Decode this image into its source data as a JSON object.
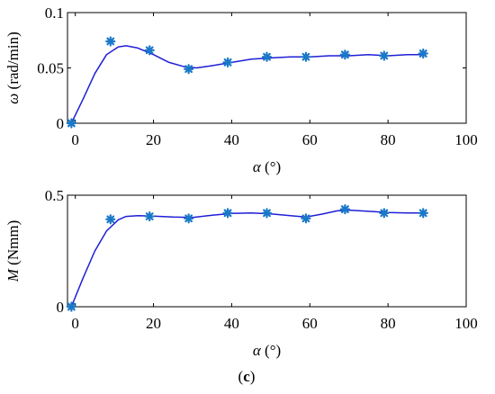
{
  "caption": {
    "prefix": "(",
    "letter": "c",
    "suffix": ")"
  },
  "colors": {
    "curve": "#1f1fd6",
    "marker": "#1a78c8"
  },
  "chart_data": [
    {
      "type": "line",
      "xlabel": {
        "symbol": "α",
        "unit": " (°)"
      },
      "ylabel": {
        "symbol": "ω",
        "unit": "  (rad/min)"
      },
      "xlim": [
        -2,
        100
      ],
      "ylim": [
        0,
        0.1
      ],
      "xticks": [
        0,
        20,
        40,
        60,
        80,
        100
      ],
      "xtick_labels": [
        "0",
        "20",
        "40",
        "60",
        "80",
        "100"
      ],
      "yticks": [
        0,
        0.05,
        0.1
      ],
      "ytick_labels": [
        "0",
        "0.05",
        "0.1"
      ],
      "grid": false,
      "series": [
        {
          "style": "markers",
          "marker": "asterisk",
          "x": [
            -1,
            9,
            19,
            29,
            39,
            49,
            59,
            69,
            79,
            89
          ],
          "y": [
            0.0,
            0.074,
            0.066,
            0.049,
            0.055,
            0.06,
            0.06,
            0.062,
            0.061,
            0.063
          ]
        },
        {
          "style": "line",
          "x": [
            -1,
            2,
            5,
            8,
            11,
            13,
            16,
            20,
            24,
            28,
            31,
            35,
            40,
            45,
            50,
            55,
            60,
            65,
            70,
            75,
            80,
            85,
            89
          ],
          "y": [
            0.0,
            0.022,
            0.045,
            0.062,
            0.069,
            0.07,
            0.068,
            0.062,
            0.055,
            0.051,
            0.05,
            0.052,
            0.055,
            0.058,
            0.059,
            0.06,
            0.06,
            0.061,
            0.061,
            0.062,
            0.061,
            0.062,
            0.062
          ]
        }
      ]
    },
    {
      "type": "line",
      "xlabel": {
        "symbol": "α",
        "unit": " (°)"
      },
      "ylabel": {
        "symbol": "M",
        "unit": " (Nmm)"
      },
      "xlim": [
        -2,
        100
      ],
      "ylim": [
        0,
        0.5
      ],
      "xticks": [
        0,
        20,
        40,
        60,
        80,
        100
      ],
      "xtick_labels": [
        "0",
        "20",
        "40",
        "60",
        "80",
        "100"
      ],
      "yticks": [
        0,
        0.5
      ],
      "ytick_labels": [
        "0",
        "0.5"
      ],
      "grid": false,
      "series": [
        {
          "style": "markers",
          "marker": "asterisk",
          "x": [
            -1,
            9,
            19,
            29,
            39,
            49,
            59,
            69,
            79,
            89
          ],
          "y": [
            0.0,
            0.392,
            0.405,
            0.396,
            0.42,
            0.42,
            0.396,
            0.437,
            0.42,
            0.42
          ]
        },
        {
          "style": "line",
          "x": [
            -1,
            2,
            5,
            8,
            11,
            13,
            16,
            20,
            25,
            30,
            35,
            40,
            45,
            50,
            55,
            59,
            63,
            67,
            70,
            75,
            80,
            85,
            89
          ],
          "y": [
            0.0,
            0.13,
            0.25,
            0.34,
            0.39,
            0.405,
            0.408,
            0.406,
            0.402,
            0.4,
            0.41,
            0.418,
            0.42,
            0.416,
            0.408,
            0.402,
            0.415,
            0.43,
            0.433,
            0.428,
            0.422,
            0.42,
            0.42
          ]
        }
      ]
    }
  ]
}
